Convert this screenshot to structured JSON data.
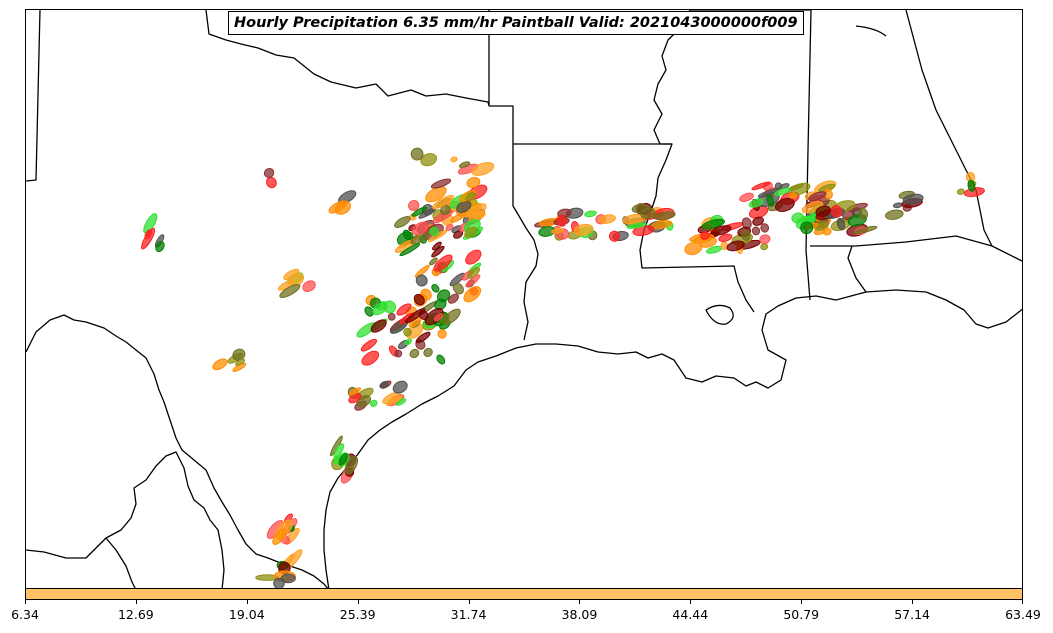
{
  "title": "Hourly Precipitation 6.35 mm/hr Paintball Valid: 2021043000000f009",
  "colorbar": {
    "color": "#ffc266",
    "ticks": [
      "6.34",
      "12.69",
      "19.04",
      "25.39",
      "31.74",
      "38.09",
      "44.44",
      "50.79",
      "57.14",
      "63.49"
    ]
  },
  "member_colors": [
    "#ff8c00",
    "#ffa020",
    "#ff2020",
    "#ff5050",
    "#7a0000",
    "#8b3030",
    "#909010",
    "#707020",
    "#008000",
    "#30e030",
    "#505050"
  ]
}
